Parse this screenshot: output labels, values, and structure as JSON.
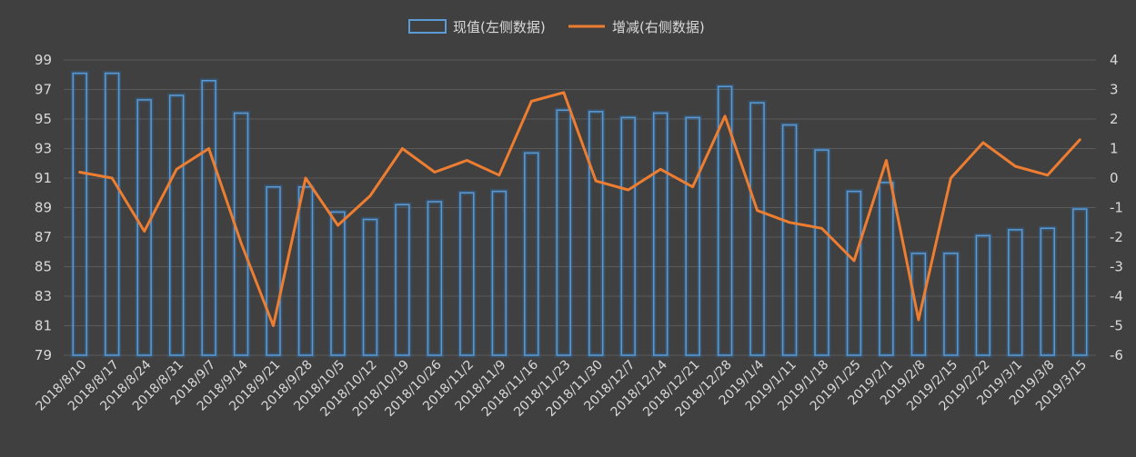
{
  "chart_data": {
    "type": "bar",
    "legend": {
      "position": "top",
      "bar_label": "现值(左侧数据)",
      "line_label": "增减(右侧数据)"
    },
    "categories": [
      "2018/8/10",
      "2018/8/17",
      "2018/8/24",
      "2018/8/31",
      "2018/9/7",
      "2018/9/14",
      "2018/9/21",
      "2018/9/28",
      "2018/10/5",
      "2018/10/12",
      "2018/10/19",
      "2018/10/26",
      "2018/11/2",
      "2018/11/9",
      "2018/11/16",
      "2018/11/23",
      "2018/11/30",
      "2018/12/7",
      "2018/12/14",
      "2018/12/21",
      "2018/12/28",
      "2019/1/4",
      "2019/1/11",
      "2019/1/18",
      "2019/1/25",
      "2019/2/1",
      "2019/2/8",
      "2019/2/15",
      "2019/2/22",
      "2019/3/1",
      "2019/3/8",
      "2019/3/15"
    ],
    "series": [
      {
        "name": "现值(左侧数据)",
        "type": "bar",
        "axis": "left",
        "color": "#5b9bd5",
        "values": [
          98.1,
          98.1,
          96.3,
          96.6,
          97.6,
          95.4,
          90.4,
          90.4,
          88.7,
          88.2,
          89.2,
          89.4,
          90.0,
          90.1,
          92.7,
          95.6,
          95.5,
          95.1,
          95.4,
          95.1,
          97.2,
          96.1,
          94.6,
          92.9,
          90.1,
          90.7,
          85.9,
          85.9,
          87.1,
          87.5,
          87.6,
          88.9
        ]
      },
      {
        "name": "增减(右侧数据)",
        "type": "line",
        "axis": "right",
        "color": "#ed7d31",
        "values": [
          0.2,
          0.0,
          -1.8,
          0.3,
          1.0,
          -2.2,
          -5.0,
          0.0,
          -1.6,
          -0.6,
          1.0,
          0.2,
          0.6,
          0.1,
          2.6,
          2.9,
          -0.1,
          -0.4,
          0.3,
          -0.3,
          2.1,
          -1.1,
          -1.5,
          -1.7,
          -2.8,
          0.6,
          -4.8,
          0.0,
          1.2,
          0.4,
          0.1,
          1.3
        ]
      }
    ],
    "y_left": {
      "min": 79,
      "max": 99,
      "step": 2
    },
    "y_right": {
      "min": -6,
      "max": 4,
      "step": 1
    },
    "grid": true
  }
}
